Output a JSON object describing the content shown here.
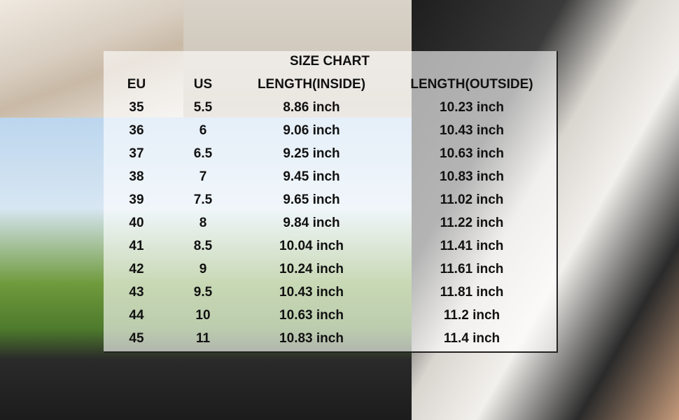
{
  "title": "SIZE CHART",
  "headers": [
    "EU",
    "US",
    "LENGTH(INSIDE)",
    "LENGTH(OUTSIDE)"
  ],
  "rows": [
    [
      "35",
      "5.5",
      "8.86 inch",
      "10.23 inch"
    ],
    [
      "36",
      "6",
      "9.06 inch",
      "10.43 inch"
    ],
    [
      "37",
      "6.5",
      "9.25 inch",
      "10.63 inch"
    ],
    [
      "38",
      "7",
      "9.45 inch",
      "10.83 inch"
    ],
    [
      "39",
      "7.5",
      "9.65 inch",
      "11.02 inch"
    ],
    [
      "40",
      "8",
      "9.84 inch",
      "11.22 inch"
    ],
    [
      "41",
      "8.5",
      "10.04 inch",
      "11.41 inch"
    ],
    [
      "42",
      "9",
      "10.24 inch",
      "11.61 inch"
    ],
    [
      "43",
      "9.5",
      "10.43 inch",
      "11.81 inch"
    ],
    [
      "44",
      "10",
      "10.63 inch",
      "11.2 inch"
    ],
    [
      "45",
      "11",
      "10.83 inch",
      "11.4 inch"
    ]
  ]
}
